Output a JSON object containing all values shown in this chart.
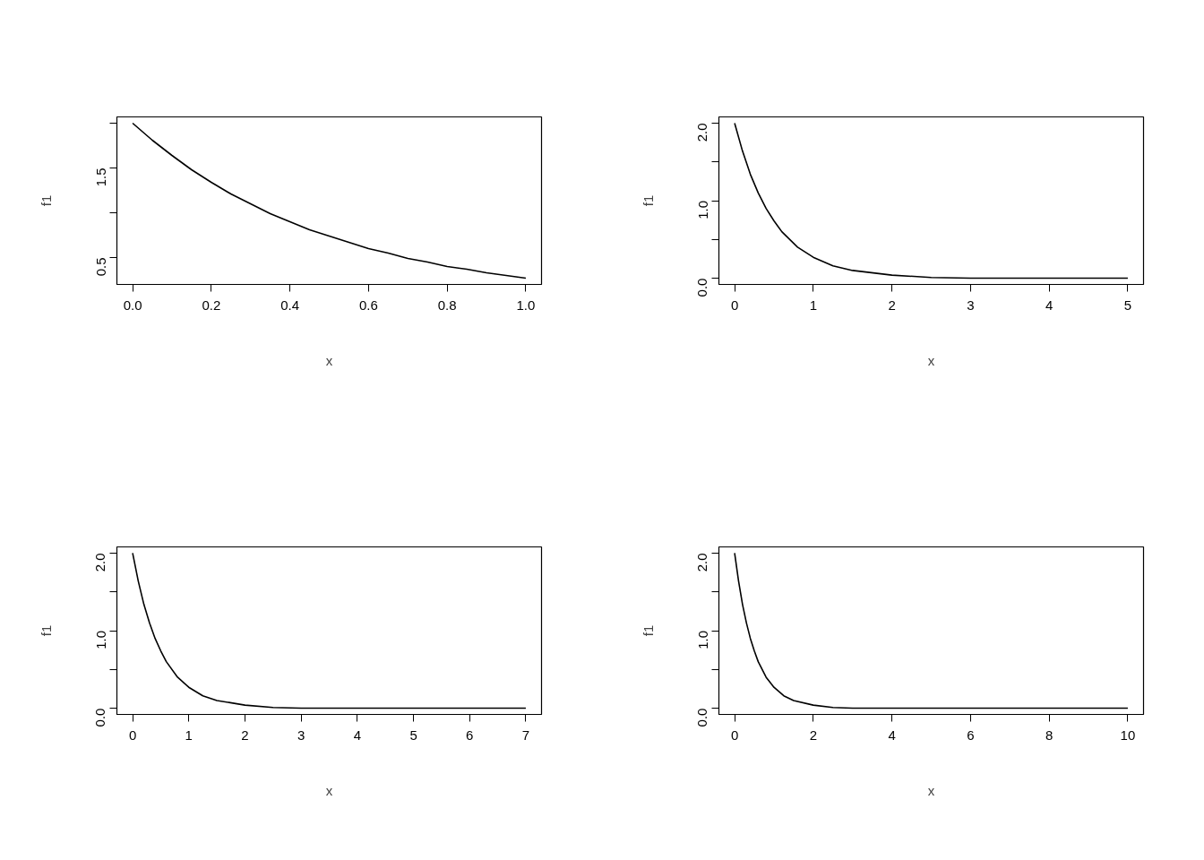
{
  "chart_data": [
    {
      "type": "line",
      "xlabel": "x",
      "ylabel": "f1",
      "color": "#000000",
      "x": [
        0,
        0.05,
        0.1,
        0.15,
        0.2,
        0.25,
        0.3,
        0.35,
        0.4,
        0.45,
        0.5,
        0.55,
        0.6,
        0.65,
        0.7,
        0.75,
        0.8,
        0.85,
        0.9,
        0.95,
        1.0
      ],
      "values": [
        2.0,
        1.81,
        1.64,
        1.48,
        1.34,
        1.21,
        1.1,
        0.99,
        0.9,
        0.81,
        0.74,
        0.67,
        0.6,
        0.55,
        0.49,
        0.45,
        0.4,
        0.37,
        0.33,
        0.3,
        0.27
      ],
      "xlim": [
        -0.04,
        1.04
      ],
      "ylim": [
        0.2,
        2.07
      ],
      "xticks": [
        {
          "value": 0,
          "label": "0.0"
        },
        {
          "value": 0.2,
          "label": "0.2"
        },
        {
          "value": 0.4,
          "label": "0.4"
        },
        {
          "value": 0.6,
          "label": "0.6"
        },
        {
          "value": 0.8,
          "label": "0.8"
        },
        {
          "value": 1,
          "label": "1.0"
        }
      ],
      "yticks": [
        {
          "value": 0.5,
          "label": "0.5"
        },
        {
          "value": 1.0,
          "label": null
        },
        {
          "value": 1.5,
          "label": "1.5"
        },
        {
          "value": 2.0,
          "label": null
        }
      ]
    },
    {
      "type": "line",
      "xlabel": "x",
      "ylabel": "f1",
      "color": "#000000",
      "x": [
        0,
        0.1,
        0.2,
        0.3,
        0.4,
        0.5,
        0.6,
        0.8,
        1.0,
        1.25,
        1.5,
        2,
        2.5,
        3,
        4,
        5
      ],
      "values": [
        2.0,
        1.64,
        1.34,
        1.1,
        0.9,
        0.74,
        0.6,
        0.4,
        0.27,
        0.16,
        0.1,
        0.04,
        0.01,
        0.0,
        0.0,
        0.0
      ],
      "xlim": [
        -0.2,
        5.2
      ],
      "ylim": [
        -0.08,
        2.08
      ],
      "xticks": [
        0,
        1,
        2,
        3,
        4,
        5
      ],
      "yticks": [
        {
          "value": 0.0,
          "label": "0.0"
        },
        {
          "value": 0.5,
          "label": null
        },
        {
          "value": 1.0,
          "label": "1.0"
        },
        {
          "value": 1.5,
          "label": null
        },
        {
          "value": 2.0,
          "label": "2.0"
        }
      ]
    },
    {
      "type": "line",
      "xlabel": "x",
      "ylabel": "f1",
      "color": "#000000",
      "x": [
        0,
        0.1,
        0.2,
        0.3,
        0.4,
        0.5,
        0.6,
        0.8,
        1.0,
        1.25,
        1.5,
        2,
        2.5,
        3,
        4,
        5,
        6,
        7
      ],
      "values": [
        2.0,
        1.64,
        1.34,
        1.1,
        0.9,
        0.74,
        0.6,
        0.4,
        0.27,
        0.16,
        0.1,
        0.04,
        0.01,
        0.0,
        0.0,
        0.0,
        0.0,
        0.0
      ],
      "xlim": [
        -0.28,
        7.28
      ],
      "ylim": [
        -0.08,
        2.08
      ],
      "xticks": [
        0,
        1,
        2,
        3,
        4,
        5,
        6,
        7
      ],
      "yticks": [
        {
          "value": 0.0,
          "label": "0.0"
        },
        {
          "value": 0.5,
          "label": null
        },
        {
          "value": 1.0,
          "label": "1.0"
        },
        {
          "value": 1.5,
          "label": null
        },
        {
          "value": 2.0,
          "label": "2.0"
        }
      ]
    },
    {
      "type": "line",
      "xlabel": "x",
      "ylabel": "f1",
      "color": "#000000",
      "x": [
        0,
        0.1,
        0.2,
        0.3,
        0.4,
        0.5,
        0.6,
        0.8,
        1.0,
        1.25,
        1.5,
        2,
        2.5,
        3,
        4,
        6,
        8,
        10
      ],
      "values": [
        2.0,
        1.64,
        1.34,
        1.1,
        0.9,
        0.74,
        0.6,
        0.4,
        0.27,
        0.16,
        0.1,
        0.04,
        0.01,
        0.0,
        0.0,
        0.0,
        0.0,
        0.0
      ],
      "xlim": [
        -0.4,
        10.4
      ],
      "ylim": [
        -0.08,
        2.08
      ],
      "xticks": [
        0,
        2,
        4,
        6,
        8,
        10
      ],
      "yticks": [
        {
          "value": 0.0,
          "label": "0.0"
        },
        {
          "value": 0.5,
          "label": null
        },
        {
          "value": 1.0,
          "label": "1.0"
        },
        {
          "value": 1.5,
          "label": null
        },
        {
          "value": 2.0,
          "label": "2.0"
        }
      ]
    }
  ]
}
